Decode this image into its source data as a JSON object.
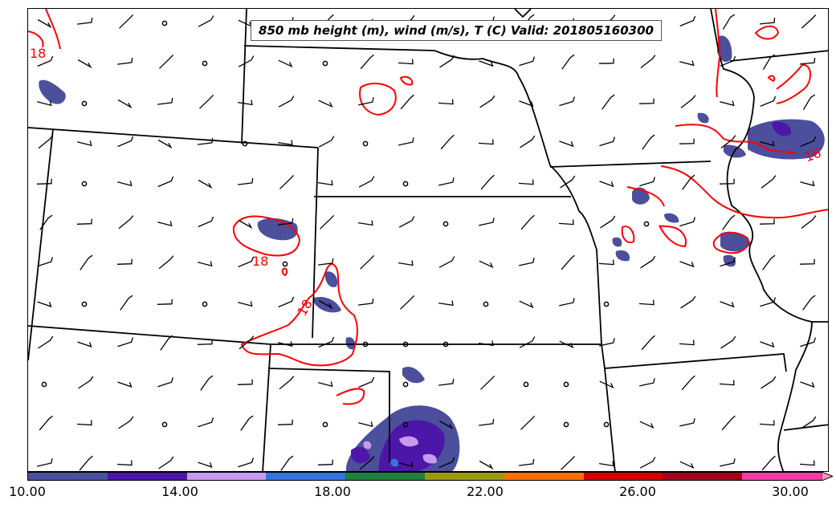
{
  "title": "850 mb height (m), wind (m/s), T (C) Valid: 201805160300",
  "contour_labels": [
    "18",
    "18",
    "18",
    "16"
  ],
  "contour_color": "#ff0000",
  "colorbar": {
    "colors": [
      "#4b4f9c",
      "#4c16a8",
      "#c89af0",
      "#3573dd",
      "#207f3f",
      "#9a9a12",
      "#ff7000",
      "#d20000",
      "#a3001d",
      "#f33ca5"
    ],
    "extend_color": "#ff99cc",
    "tick_labels": [
      "10.00",
      "14.00",
      "18.00",
      "22.00",
      "26.00",
      "30.00"
    ]
  }
}
